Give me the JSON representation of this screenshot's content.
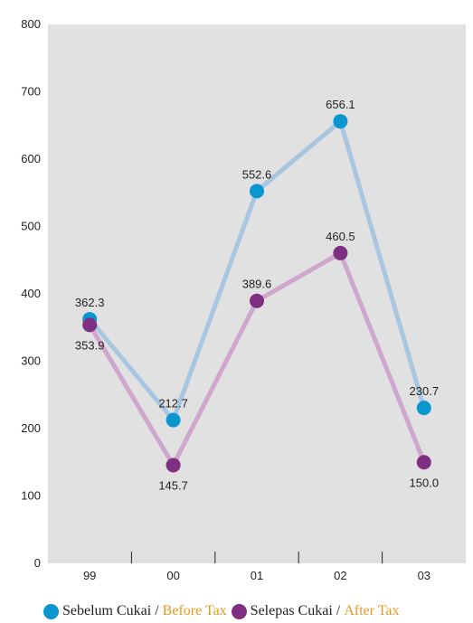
{
  "chart_data": {
    "type": "line",
    "categories": [
      "99",
      "00",
      "01",
      "02",
      "03"
    ],
    "ylim": [
      0,
      800
    ],
    "yticks": [
      0,
      100,
      200,
      300,
      400,
      500,
      600,
      700,
      800
    ],
    "grid": false,
    "legend_position": "bottom",
    "series": [
      {
        "name_ms": "Sebelum Cukai",
        "name_en": "Before Tax",
        "values": [
          362.3,
          212.7,
          552.6,
          656.1,
          230.7
        ],
        "labels": [
          "362.3",
          "212.7",
          "552.6",
          "656.1",
          "230.7"
        ],
        "line_color": "#a9c6e1",
        "marker_color": "#0a96cf"
      },
      {
        "name_ms": "Selepas Cukai",
        "name_en": "After Tax",
        "values": [
          353.9,
          145.7,
          389.6,
          460.5,
          150.0
        ],
        "labels": [
          "353.9",
          "145.7",
          "389.6",
          "460.5",
          "150.0"
        ],
        "line_color": "#cfa6ce",
        "marker_color": "#7f2f81"
      }
    ],
    "colors": {
      "plot_background": "#e1e1e1",
      "legend_en_text": "#e8981e",
      "text": "#231f20"
    }
  },
  "legend": {
    "separator": "/"
  }
}
